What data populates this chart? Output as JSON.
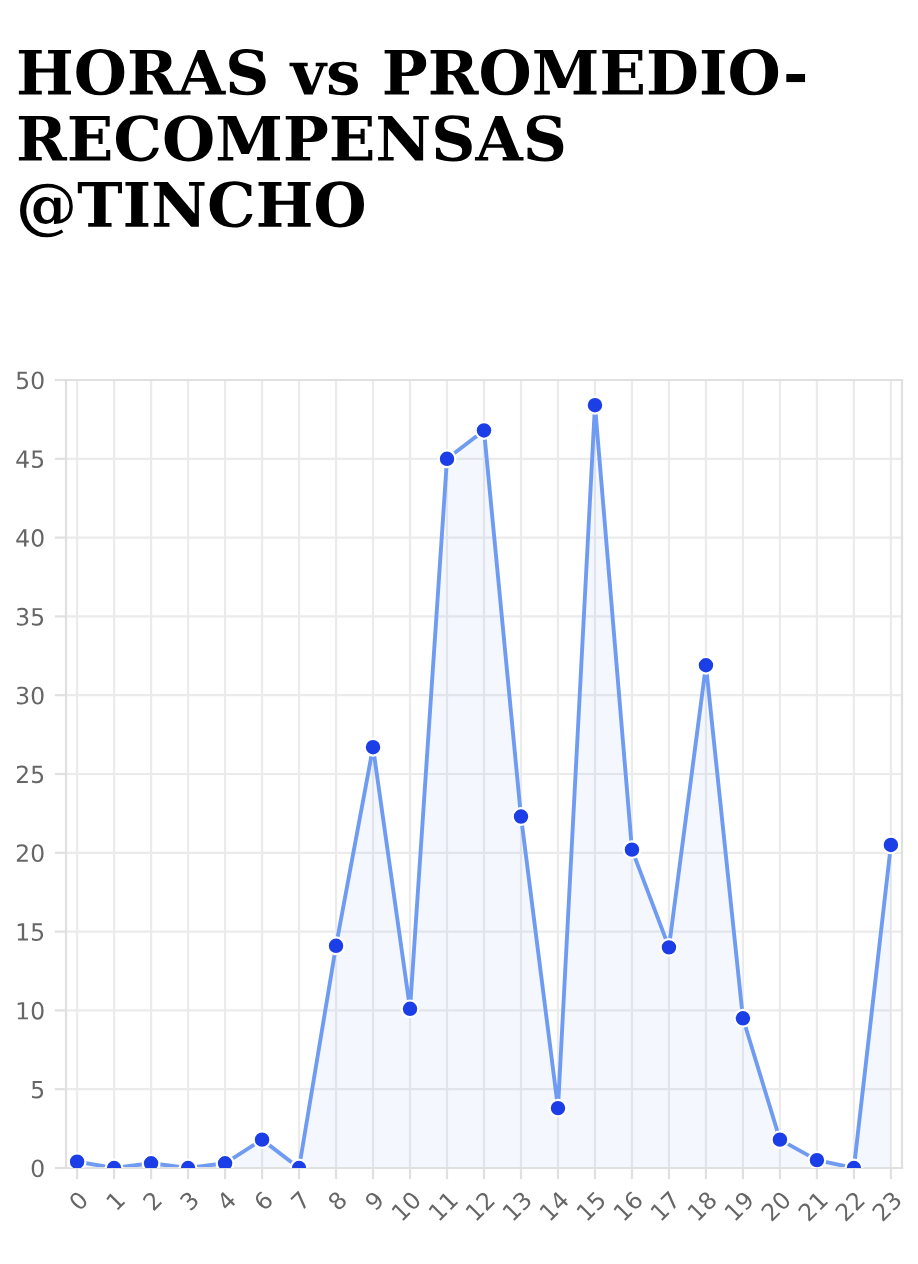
{
  "chart_data": {
    "type": "area",
    "title": "HORAS vs PROMEDIO-RECOMPENSAS @TINCHO",
    "categories": [
      "0",
      "1",
      "2",
      "3",
      "4",
      "6",
      "7",
      "8",
      "9",
      "10",
      "11",
      "12",
      "13",
      "14",
      "15",
      "16",
      "17",
      "18",
      "19",
      "20",
      "21",
      "22",
      "23"
    ],
    "series": [
      {
        "color": "#6f9cf2",
        "values": [
          0.4,
          0,
          0.3,
          0,
          0.3,
          1.8,
          0,
          14.1,
          26.7,
          10.1,
          45,
          46.8,
          22.3,
          3.8,
          48.4,
          20.2,
          14,
          31.9,
          9.5,
          1.8,
          0.5,
          0,
          20.5
        ]
      }
    ],
    "ylim": [
      0,
      50
    ],
    "yticks": [
      0,
      5,
      10,
      15,
      20,
      25,
      30,
      35,
      40,
      45,
      50
    ],
    "grid": true,
    "marker": "circle",
    "line_style": "solid",
    "legend": false
  }
}
